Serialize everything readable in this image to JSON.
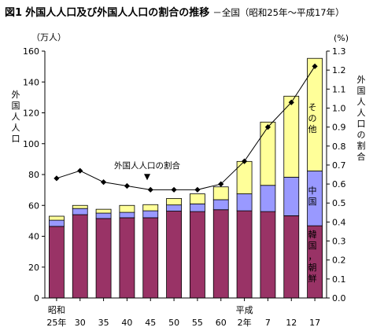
{
  "figure": {
    "label": "図1",
    "title": "外国人人口及び外国人人口の割合の推移",
    "subtitle": "－全国（昭和25年～平成17年）"
  },
  "chart_data": {
    "type": "bar",
    "stacked": true,
    "categories": [
      "25年",
      "30",
      "35",
      "40",
      "45",
      "50",
      "55",
      "60",
      "2年",
      "7",
      "12",
      "17"
    ],
    "era_labels": [
      {
        "index": 0,
        "text": "昭和"
      },
      {
        "index": 8,
        "text": "平成"
      }
    ],
    "series": [
      {
        "name": "韓国，朝鮮",
        "color": "#993366",
        "values": [
          46.4,
          54.0,
          51.5,
          52.0,
          52.0,
          56.3,
          56.0,
          57.2,
          56.5,
          56.0,
          53.3,
          46.8
        ]
      },
      {
        "name": "中国",
        "color": "#9999ff",
        "values": [
          4.0,
          4.0,
          3.5,
          3.5,
          4.5,
          4.0,
          5.0,
          6.5,
          11.0,
          17.0,
          25.0,
          35.5
        ]
      },
      {
        "name": "その他",
        "color": "#ffff99",
        "values": [
          2.6,
          2.0,
          2.5,
          4.5,
          4.0,
          4.2,
          6.5,
          8.3,
          21.0,
          41.0,
          52.5,
          73.0
        ]
      }
    ],
    "line": {
      "name": "外国人人口の割合",
      "axis": "right",
      "values": [
        0.63,
        0.67,
        0.61,
        0.59,
        0.57,
        0.57,
        0.57,
        0.6,
        0.72,
        0.9,
        1.03,
        1.22
      ]
    },
    "y_left": {
      "label": "外国人人口",
      "unit": "（万人）",
      "min": 0,
      "max": 160,
      "step": 20
    },
    "y_right": {
      "label": "外国人人口の割合",
      "unit": "(%)",
      "min": 0,
      "max": 1.3,
      "step": 0.1
    },
    "grid": false
  },
  "annotation": {
    "text": "外国人人口の割合",
    "marker": "▼"
  },
  "legend_labels": [
    "その他",
    "中国",
    "韓国，朝鮮"
  ]
}
